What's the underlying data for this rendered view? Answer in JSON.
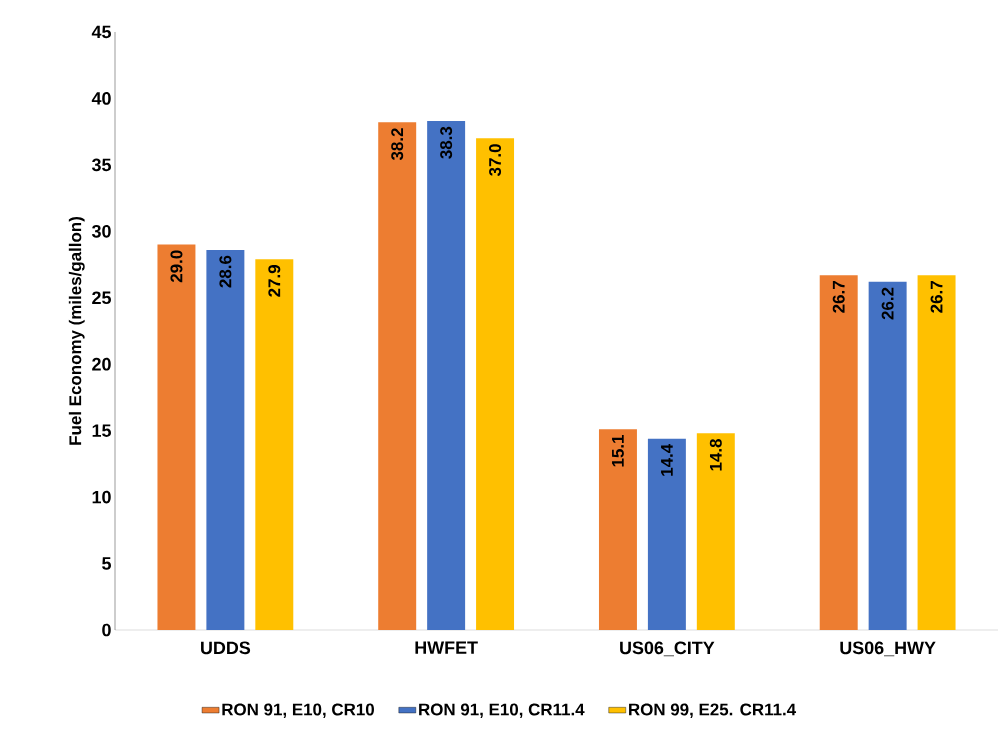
{
  "chart_data": {
    "type": "bar",
    "ylabel": "Fuel Economy (miles/gallon)",
    "categories": [
      "UDDS",
      "HWFET",
      "US06_CITY",
      "US06_HWY"
    ],
    "series": [
      {
        "name": "RON 91, E10, CR10",
        "color": "#ed7d31",
        "values": [
          29.0,
          38.2,
          15.1,
          26.7
        ],
        "value_labels": [
          "29.0",
          "38.2",
          "15.1",
          "26.7"
        ]
      },
      {
        "name": "RON 91, E10, CR11.4",
        "color": "#4472c4",
        "values": [
          28.6,
          38.3,
          14.4,
          26.2
        ],
        "value_labels": [
          "28.6",
          "38.3",
          "14.4",
          "26.2"
        ]
      },
      {
        "name": "RON 99, E25. CR11.4",
        "color": "#ffc000",
        "values": [
          27.9,
          37.0,
          14.8,
          26.7
        ],
        "value_labels": [
          "27.9",
          "37.0",
          "14.8",
          "26.7"
        ]
      }
    ],
    "ylim": [
      0,
      45
    ],
    "yticks": [
      0,
      5,
      10,
      15,
      20,
      25,
      30,
      35,
      40,
      45
    ],
    "legend": "bottom",
    "grid": false
  }
}
